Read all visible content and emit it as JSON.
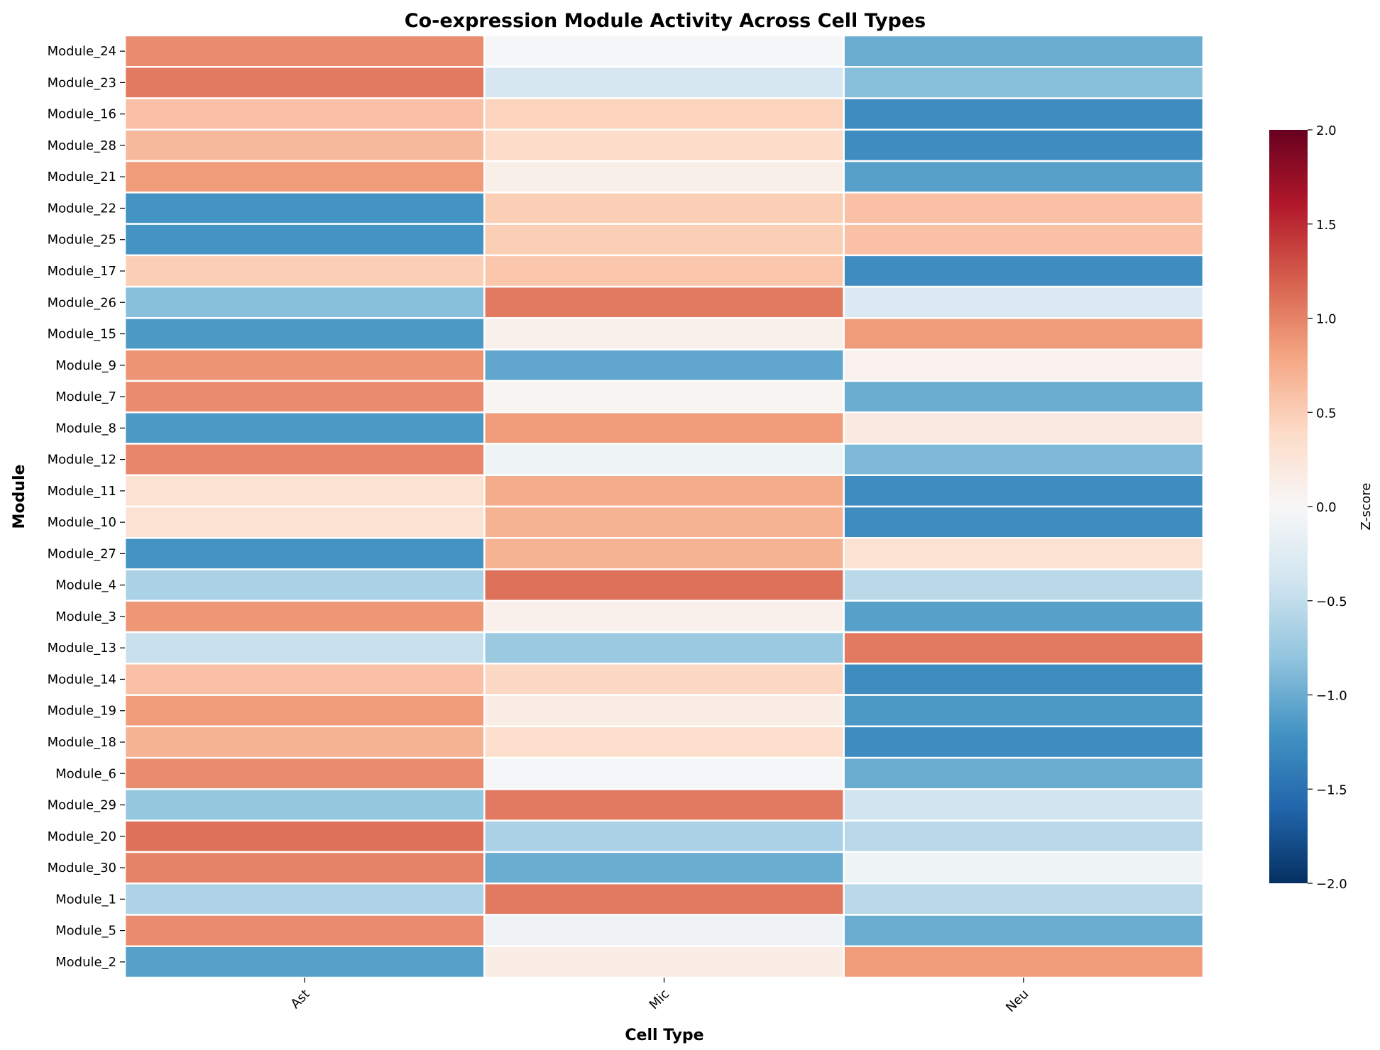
{
  "chart_data": {
    "type": "heatmap",
    "title": "Co-expression Module Activity Across Cell Types",
    "xlabel": "Cell Type",
    "ylabel": "Module",
    "columns": [
      "Ast",
      "Mic",
      "Neu"
    ],
    "rows": [
      "Module_24",
      "Module_23",
      "Module_16",
      "Module_28",
      "Module_21",
      "Module_22",
      "Module_25",
      "Module_17",
      "Module_26",
      "Module_15",
      "Module_9",
      "Module_7",
      "Module_8",
      "Module_12",
      "Module_11",
      "Module_10",
      "Module_27",
      "Module_4",
      "Module_3",
      "Module_13",
      "Module_14",
      "Module_19",
      "Module_18",
      "Module_6",
      "Module_29",
      "Module_20",
      "Module_30",
      "Module_1",
      "Module_5",
      "Module_2"
    ],
    "values": [
      [
        0.95,
        -0.02,
        -1.0
      ],
      [
        1.05,
        -0.35,
        -0.85
      ],
      [
        0.6,
        0.45,
        -1.25
      ],
      [
        0.65,
        0.38,
        -1.25
      ],
      [
        0.85,
        0.12,
        -1.1
      ],
      [
        -1.2,
        0.5,
        0.6
      ],
      [
        -1.2,
        0.5,
        0.6
      ],
      [
        0.5,
        0.55,
        -1.25
      ],
      [
        -0.85,
        1.05,
        -0.3
      ],
      [
        -1.15,
        0.1,
        0.85
      ],
      [
        0.9,
        -1.05,
        0.08
      ],
      [
        0.95,
        0.05,
        -1.0
      ],
      [
        -1.15,
        0.85,
        0.2
      ],
      [
        0.98,
        -0.1,
        -0.9
      ],
      [
        0.3,
        0.75,
        -1.25
      ],
      [
        0.3,
        0.7,
        -1.25
      ],
      [
        -1.2,
        0.7,
        0.3
      ],
      [
        -0.65,
        1.1,
        -0.55
      ],
      [
        0.88,
        0.1,
        -1.1
      ],
      [
        -0.45,
        -0.75,
        1.05
      ],
      [
        0.6,
        0.42,
        -1.25
      ],
      [
        0.85,
        0.15,
        -1.15
      ],
      [
        0.7,
        0.35,
        -1.25
      ],
      [
        0.95,
        -0.02,
        -1.0
      ],
      [
        -0.78,
        1.05,
        -0.4
      ],
      [
        1.1,
        -0.65,
        -0.55
      ],
      [
        1.0,
        -1.0,
        -0.1
      ],
      [
        -0.62,
        1.05,
        -0.55
      ],
      [
        0.95,
        -0.08,
        -1.0
      ],
      [
        -1.1,
        0.15,
        0.85
      ]
    ],
    "colorbar": {
      "label": "Z-score",
      "range": [
        -2.0,
        2.0
      ],
      "ticks": [
        "2.0",
        "1.5",
        "1.0",
        "0.5",
        "0.0",
        "−0.5",
        "−1.0",
        "−1.5",
        "−2.0"
      ],
      "colormap": "RdBu_r"
    }
  }
}
